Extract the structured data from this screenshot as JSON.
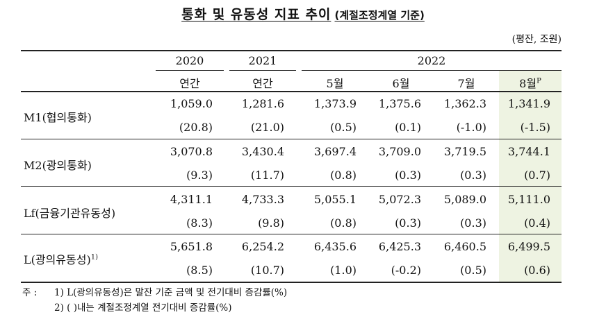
{
  "title": {
    "main": "통화 및 유동성 지표 추이",
    "sub": "(계절조정계열 기준)"
  },
  "unit": "(평잔, 조원)",
  "header": {
    "years": [
      "2020",
      "2021",
      "2022"
    ],
    "columns": [
      "연간",
      "연간",
      "5월",
      "6월",
      "7월",
      "8월"
    ],
    "preliminary_mark": "P"
  },
  "rows": [
    {
      "label": "M1(협의통화)",
      "footnote": "",
      "values": [
        "1,059.0",
        "1,281.6",
        "1,373.9",
        "1,375.6",
        "1,362.3",
        "1,341.9"
      ],
      "changes": [
        "(20.8)",
        "(21.0)",
        "(0.5)",
        "(0.1)",
        "(-1.0)",
        "(-1.5)"
      ]
    },
    {
      "label": "M2(광의통화)",
      "footnote": "",
      "values": [
        "3,070.8",
        "3,430.4",
        "3,697.4",
        "3,709.0",
        "3,719.5",
        "3,744.1"
      ],
      "changes": [
        "(9.3)",
        "(11.7)",
        "(0.8)",
        "(0.3)",
        "(0.3)",
        "(0.7)"
      ]
    },
    {
      "label": "Lf(금융기관유동성)",
      "footnote": "",
      "values": [
        "4,311.1",
        "4,733.3",
        "5,055.1",
        "5,072.3",
        "5,089.0",
        "5,111.0"
      ],
      "changes": [
        "(8.3)",
        "(9.8)",
        "(0.8)",
        "(0.3)",
        "(0.3)",
        "(0.4)"
      ]
    },
    {
      "label": "L(광의유동성)",
      "footnote": "1)",
      "values": [
        "5,651.8",
        "6,254.2",
        "6,435.6",
        "6,425.3",
        "6,460.5",
        "6,499.5"
      ],
      "changes": [
        "(8.5)",
        "(10.7)",
        "(1.0)",
        "(-0.2)",
        "(0.5)",
        "(0.6)"
      ]
    }
  ],
  "notes": {
    "prefix": "주 :",
    "note1": "1) L(광의유동성)은 말잔 기준 금액 및 전기대비 증감률(%)",
    "note2": "2) (    )내는 계절조정계열 전기대비 증감률(%)"
  },
  "colors": {
    "highlight": "#eef3e2",
    "rule": "#222222"
  }
}
